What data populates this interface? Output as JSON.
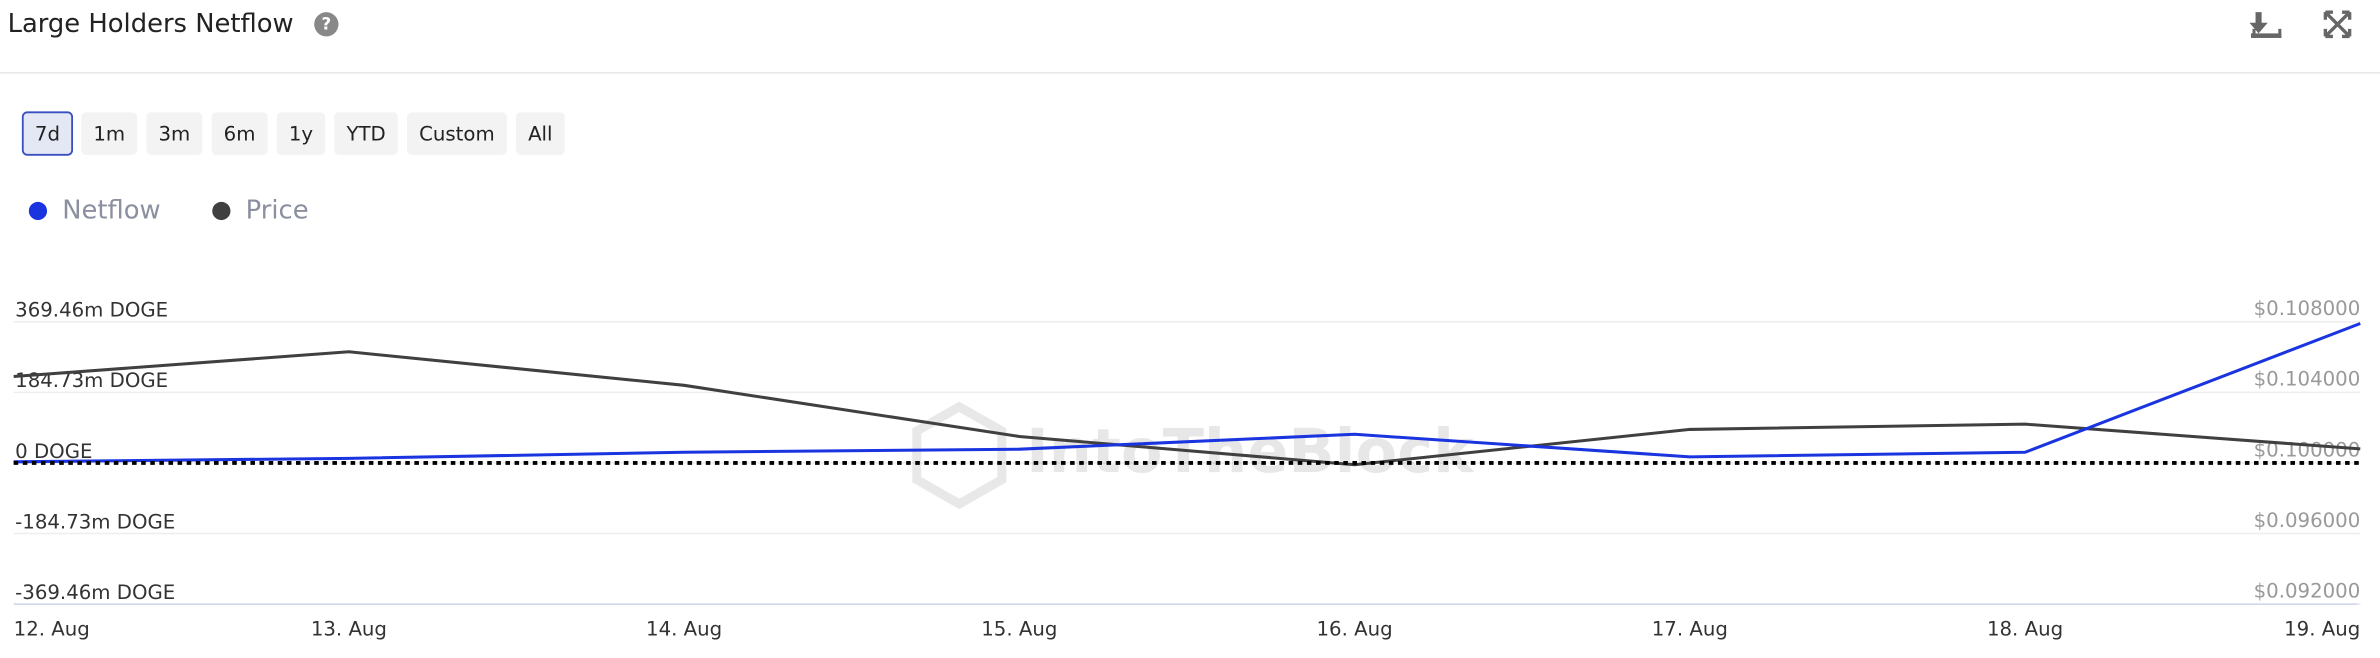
{
  "header": {
    "title": "Large Holders Netflow"
  },
  "range_buttons": [
    "7d",
    "1m",
    "3m",
    "6m",
    "1y",
    "YTD",
    "Custom",
    "All"
  ],
  "active_button": 0,
  "watermark": "IntoTheBlock",
  "chart_data": {
    "type": "line",
    "categories": [
      "12. Aug",
      "13. Aug",
      "14. Aug",
      "15. Aug",
      "16. Aug",
      "17. Aug",
      "18. Aug",
      "19. Aug"
    ],
    "series": [
      {
        "name": "Netflow",
        "color": "#1a35e0",
        "values": [
          3000000,
          12000000,
          28000000,
          36000000,
          75000000,
          16000000,
          28000000,
          365000000
        ]
      },
      {
        "name": "Price",
        "color": "#404040",
        "axis": "y2",
        "values": [
          0.1049,
          0.1063,
          0.1044,
          0.1015,
          0.0999,
          0.1019,
          0.1022,
          0.1008
        ]
      }
    ],
    "ylim": [
      -369460000,
      369460000
    ],
    "yticks": [
      {
        "value": -369460000,
        "label": "-369.46m DOGE"
      },
      {
        "value": -184730000,
        "label": "-184.73m DOGE"
      },
      {
        "value": 0,
        "label": "0 DOGE"
      },
      {
        "value": 184730000,
        "label": "184.73m DOGE"
      },
      {
        "value": 369460000,
        "label": "369.46m DOGE"
      }
    ],
    "y2lim": [
      0.092,
      0.108
    ],
    "y2ticks": [
      {
        "value": 0.092,
        "label": "$0.092000"
      },
      {
        "value": 0.096,
        "label": "$0.096000"
      },
      {
        "value": 0.1,
        "label": "$0.100000"
      },
      {
        "value": 0.104,
        "label": "$0.104000"
      },
      {
        "value": 0.108,
        "label": "$0.108000"
      }
    ],
    "grid": true,
    "zero_line": true
  }
}
